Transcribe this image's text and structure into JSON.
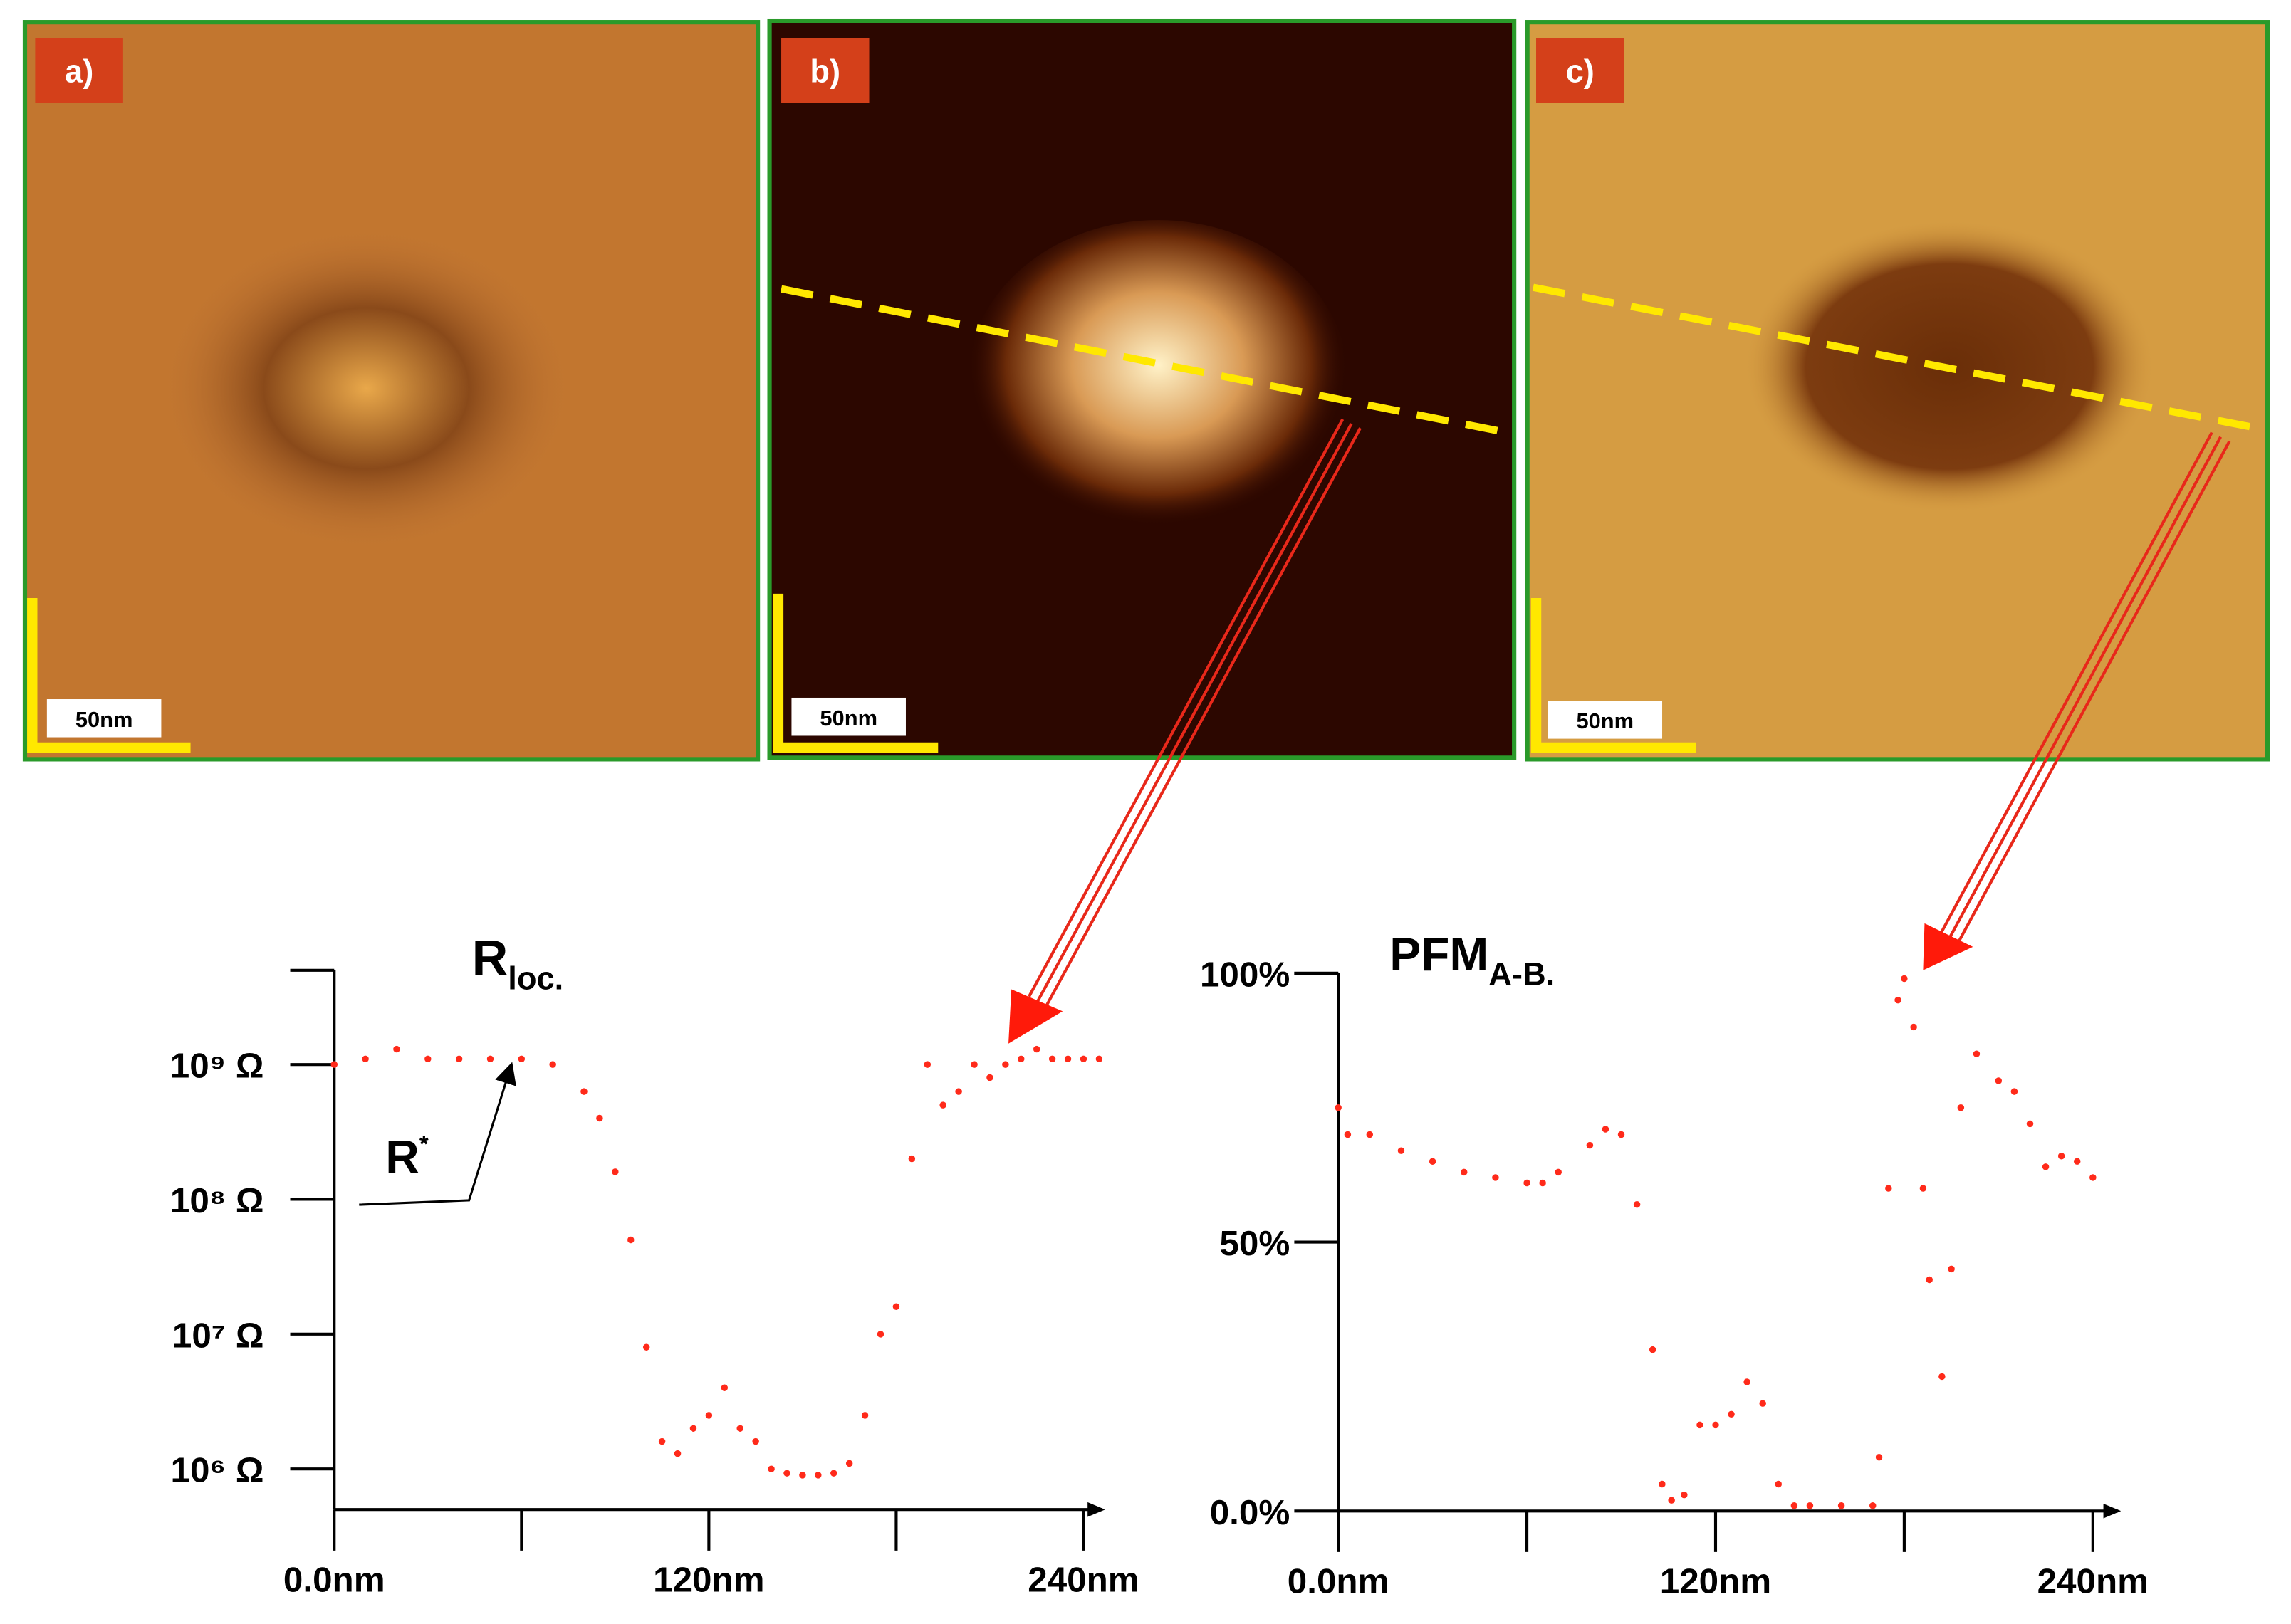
{
  "panels": [
    {
      "label": "a)",
      "scale_label": "50nm"
    },
    {
      "label": "b)",
      "scale_label": "50nm"
    },
    {
      "label": "c)",
      "scale_label": "50nm"
    }
  ],
  "chart_data": [
    {
      "type": "scatter",
      "title": "R",
      "title_subscript": "loc.",
      "annotation": "R",
      "annotation_superscript": "*",
      "color": "#ff2a1a",
      "log_y": true,
      "x": [
        0,
        10,
        20,
        30,
        40,
        50,
        60,
        70,
        80,
        85,
        90,
        95,
        100,
        105,
        110,
        115,
        120,
        125,
        130,
        135,
        140,
        145,
        150,
        155,
        160,
        165,
        170,
        175,
        180,
        185,
        190,
        195,
        200,
        205,
        210,
        215,
        220,
        225,
        230,
        235,
        240,
        245
      ],
      "values": [
        1000000000.0,
        1100000000.0,
        1300000000.0,
        1100000000.0,
        1100000000.0,
        1100000000.0,
        1100000000.0,
        1000000000.0,
        630000000.0,
        400000000.0,
        160000000.0,
        50000000.0,
        8000000.0,
        1600000.0,
        1300000.0,
        2000000.0,
        2500000.0,
        4000000.0,
        2000000.0,
        1600000.0,
        1000000.0,
        930000.0,
        900000.0,
        900000.0,
        930000.0,
        1100000.0,
        2500000.0,
        10000000.0,
        16000000.0,
        200000000.0,
        1000000000.0,
        500000000.0,
        630000000.0,
        1000000000.0,
        800000000.0,
        1000000000.0,
        1100000000.0,
        1300000000.0,
        1100000000.0,
        1100000000.0,
        1100000000.0,
        1100000000.0
      ],
      "xlim": [
        0,
        246
      ],
      "ylim": [
        500000.0,
        5000000000.0
      ],
      "xticks": [
        {
          "value": 0,
          "label": "0.0nm"
        },
        {
          "value": 120,
          "label": "120nm"
        },
        {
          "value": 240,
          "label": "240nm"
        }
      ],
      "xminorticks": [
        60,
        180
      ],
      "yticks": [
        {
          "value": 1000000.0,
          "label": "10⁶ Ω"
        },
        {
          "value": 10000000.0,
          "label": "10⁷ Ω"
        },
        {
          "value": 100000000.0,
          "label": "10⁸ Ω"
        },
        {
          "value": 1000000000.0,
          "label": "10⁹ Ω"
        }
      ]
    },
    {
      "type": "scatter",
      "title": "PFM",
      "title_subscript": "A-B.",
      "color": "#ff2a1a",
      "x": [
        0,
        3,
        10,
        20,
        30,
        40,
        50,
        60,
        65,
        70,
        80,
        85,
        90,
        95,
        100,
        103,
        106,
        110,
        115,
        120,
        125,
        130,
        135,
        140,
        145,
        150,
        160,
        170,
        172,
        175,
        178,
        180,
        183,
        186,
        188,
        192,
        195,
        198,
        203,
        210,
        215,
        220,
        225,
        230,
        235,
        240
      ],
      "values": [
        75,
        70,
        70,
        67,
        65,
        63,
        62,
        61,
        61,
        63,
        68,
        71,
        70,
        57,
        30,
        5,
        2,
        3,
        16,
        16,
        18,
        24,
        20,
        5,
        1,
        1,
        1,
        1,
        10,
        60,
        95,
        99,
        90,
        60,
        43,
        25,
        45,
        75,
        85,
        80,
        78,
        72,
        64,
        66,
        65,
        62
      ],
      "xlim": [
        0,
        248
      ],
      "ylim": [
        0,
        100
      ],
      "xticks": [
        {
          "value": 0,
          "label": "0.0nm"
        },
        {
          "value": 120,
          "label": "120nm"
        },
        {
          "value": 240,
          "label": "240nm"
        }
      ],
      "xminorticks": [
        60,
        180
      ],
      "yticks": [
        {
          "value": 0,
          "label": "0.0%"
        },
        {
          "value": 50,
          "label": "50%"
        },
        {
          "value": 100,
          "label": "100%"
        }
      ]
    }
  ]
}
